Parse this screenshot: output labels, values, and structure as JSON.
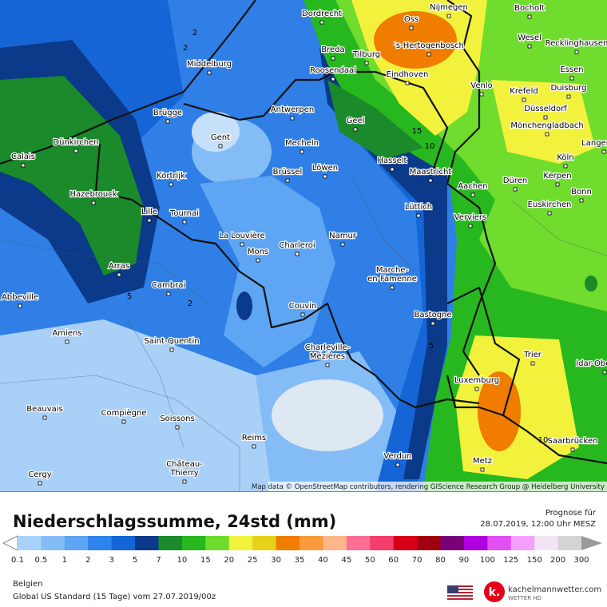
{
  "map": {
    "cities": [
      {
        "name": "Dordrecht"
      },
      {
        "name": "Oss"
      },
      {
        "name": "Nijmegen"
      },
      {
        "name": "Bocholt"
      },
      {
        "name": "'s-Hertogenbosch"
      },
      {
        "name": "Wesel"
      },
      {
        "name": "Recklinghausen"
      },
      {
        "name": "Breda"
      },
      {
        "name": "Tilburg"
      },
      {
        "name": "Middelburg"
      },
      {
        "name": "Roosendaal"
      },
      {
        "name": "Eindhoven"
      },
      {
        "name": "Venlo"
      },
      {
        "name": "Krefeld"
      },
      {
        "name": "Essen"
      },
      {
        "name": "Duisburg"
      },
      {
        "name": "Düsseldorf"
      },
      {
        "name": "Mönchengladbach"
      },
      {
        "name": "Antwerpen"
      },
      {
        "name": "Brügge"
      },
      {
        "name": "Geel"
      },
      {
        "name": "Gent"
      },
      {
        "name": "Mecheln"
      },
      {
        "name": "Dünkirchen"
      },
      {
        "name": "Calais"
      },
      {
        "name": "Köln"
      },
      {
        "name": "Hasselt"
      },
      {
        "name": "Maastricht"
      },
      {
        "name": "Brüssel"
      },
      {
        "name": "Löwen"
      },
      {
        "name": "Kortrijk"
      },
      {
        "name": "Düren"
      },
      {
        "name": "Kerpen"
      },
      {
        "name": "Aachen"
      },
      {
        "name": "Bonn"
      },
      {
        "name": "Hazebrouck"
      },
      {
        "name": "Lille"
      },
      {
        "name": "Tournai"
      },
      {
        "name": "Lüttich"
      },
      {
        "name": "Verviers"
      },
      {
        "name": "Euskirchen"
      },
      {
        "name": "La Louvière"
      },
      {
        "name": "Mons"
      },
      {
        "name": "Charleroi"
      },
      {
        "name": "Namur"
      },
      {
        "name": "Arras"
      },
      {
        "lines": [
          "Marche-",
          "en-Famenne"
        ]
      },
      {
        "name": "Cambrai"
      },
      {
        "name": "Abbeville"
      },
      {
        "name": "Couvin"
      },
      {
        "name": "Bastogne"
      },
      {
        "name": "Amiens"
      },
      {
        "name": "Saint-Quentin"
      },
      {
        "name": "Trier"
      },
      {
        "lines": [
          "Charleville-",
          "Mézières"
        ]
      },
      {
        "name": "Idar-Oberstein"
      },
      {
        "name": "Luxemburg"
      },
      {
        "name": "Beauvais"
      },
      {
        "name": "Compiègne"
      },
      {
        "name": "Soissons"
      },
      {
        "name": "Saarbrücken"
      },
      {
        "name": "Reims"
      },
      {
        "name": "Verdun"
      },
      {
        "name": "Metz"
      },
      {
        "lines": [
          "Château-",
          "Thierry"
        ]
      },
      {
        "name": "Cergy"
      },
      {
        "name": "Langenfeld"
      }
    ],
    "contour_labels": [
      "2",
      "2",
      "15",
      "10",
      "5",
      "2",
      "5",
      "10"
    ],
    "attribution": "Map data © OpenStreetMap contributors, rendering GIScience Research Group @ Heidelberg University"
  },
  "header": {
    "title": "Niederschlagssumme, 24std (mm)",
    "forecast_label": "Prognose für",
    "forecast_time": "28.07.2019, 12:00 Uhr MESZ"
  },
  "legend": {
    "values": [
      0.1,
      0.5,
      1,
      2,
      3,
      5,
      7,
      10,
      15,
      20,
      25,
      30,
      35,
      40,
      45,
      50,
      60,
      70,
      80,
      90,
      100,
      125,
      150,
      200,
      300
    ],
    "colors": [
      "#a9d3fa",
      "#84bdf6",
      "#5ea5f3",
      "#2f83ec",
      "#1565d6",
      "#0b3a8a",
      "#1a8a2a",
      "#27b81f",
      "#6fdc2e",
      "#f2f23d",
      "#e6d21a",
      "#f07c00",
      "#fa9a3c",
      "#fdb58a",
      "#fc6f95",
      "#f53d6c",
      "#d80019",
      "#a0000f",
      "#7a007a",
      "#b000e0",
      "#e050f5",
      "#f5a0ff",
      "#f3e4f5",
      "#d4d4d4"
    ]
  },
  "footer": {
    "region": "Belgien",
    "model": "Global US Standard (15 Tage) vom 27.07.2019/00z",
    "brand": "kachelmannwetter.com",
    "brand_sub": "WETTER HD"
  }
}
